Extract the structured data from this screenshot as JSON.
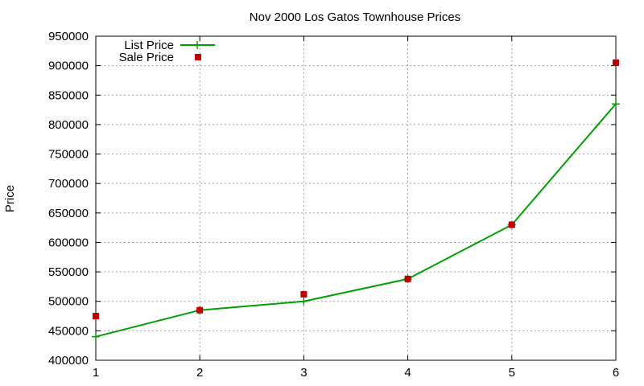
{
  "chart_data": {
    "type": "line",
    "title": "Nov 2000 Los Gatos Townhouse Prices",
    "xlabel": "",
    "ylabel": "Price",
    "xlim": [
      1,
      6
    ],
    "ylim": [
      400000,
      950000
    ],
    "x_ticks": [
      1,
      2,
      3,
      4,
      5,
      6
    ],
    "y_ticks": [
      400000,
      450000,
      500000,
      550000,
      600000,
      650000,
      700000,
      750000,
      800000,
      850000,
      900000,
      950000
    ],
    "grid": true,
    "legend_position": "top-left",
    "series": [
      {
        "name": "List Price",
        "style": "line-with-plus-markers",
        "color": "#00a000",
        "x": [
          1,
          2,
          3,
          4,
          5,
          6
        ],
        "values": [
          440000,
          485000,
          500000,
          538000,
          630000,
          835000
        ]
      },
      {
        "name": "Sale Price",
        "style": "square-markers",
        "color": "#c00000",
        "x": [
          1,
          2,
          3,
          4,
          5,
          6
        ],
        "values": [
          475000,
          485000,
          512000,
          538000,
          630000,
          905000
        ]
      }
    ]
  }
}
